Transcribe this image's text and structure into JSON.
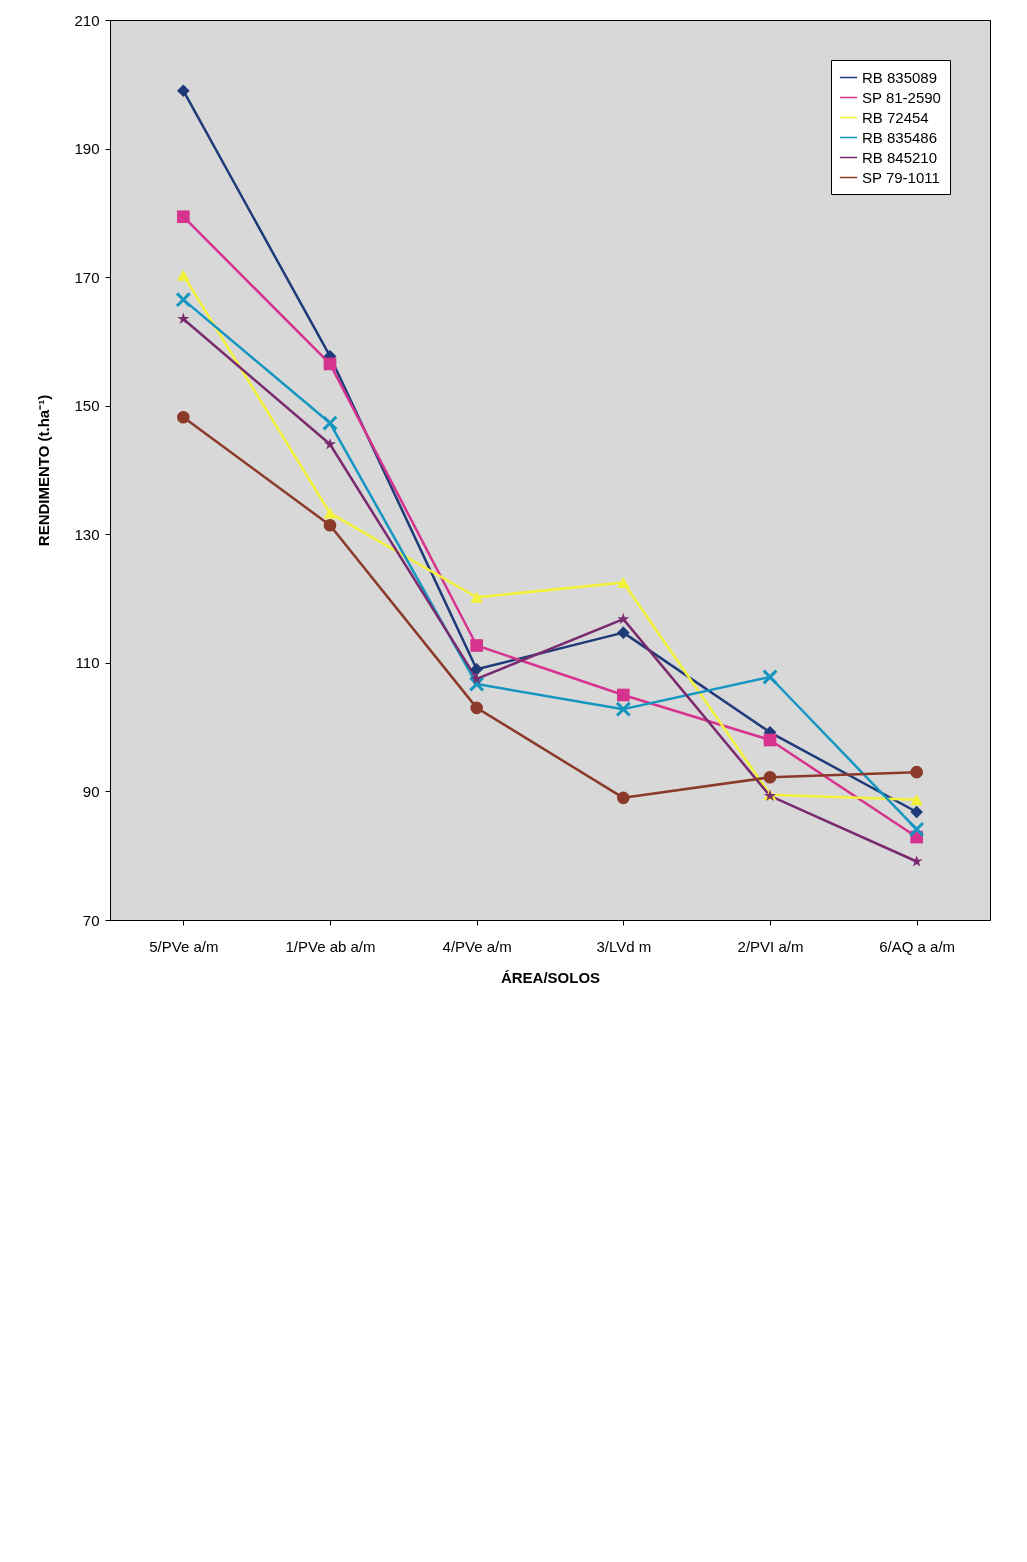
{
  "chart_data": {
    "type": "line",
    "xlabel": "ÁREA/SOLOS",
    "ylabel": "RENDIMENTO (t.ha⁻¹)",
    "categories": [
      "5/PVe a/m",
      "1/PVe ab a/m",
      "4/PVe a/m",
      "3/LVd m",
      "2/PVI a/m",
      "6/AQ a a/m"
    ],
    "ylim": [
      70,
      210
    ],
    "yticks": [
      70,
      90,
      110,
      130,
      150,
      170,
      190,
      210
    ],
    "grid": false,
    "legend": "top right",
    "series": [
      {
        "name": "RB 835089",
        "color": "#1f3a78",
        "marker": "diamond",
        "values": [
          199,
          157.7,
          109,
          114.7,
          99.2,
          86.8
        ]
      },
      {
        "name": "SP 81-2590",
        "color": "#d6338f",
        "marker": "square",
        "values": [
          179.4,
          156.5,
          112.7,
          105,
          98,
          82.9
        ]
      },
      {
        "name": "RB 72454",
        "color": "#f2f23a",
        "marker": "triangle",
        "values": [
          170.3,
          133.3,
          120.2,
          122.5,
          89.5,
          88.7
        ]
      },
      {
        "name": "RB 835486",
        "color": "#1596c0",
        "marker": "cross",
        "values": [
          166.5,
          147.3,
          106.7,
          102.8,
          107.8,
          84.1
        ]
      },
      {
        "name": "RB 845210",
        "color": "#7a2a6e",
        "marker": "star",
        "values": [
          163.5,
          144,
          107.5,
          116.8,
          89.3,
          79.1
        ]
      },
      {
        "name": "SP 79-1011",
        "color": "#8b3a2a",
        "marker": "circle",
        "values": [
          148.2,
          131.4,
          103,
          89,
          92.2,
          93
        ]
      }
    ]
  }
}
